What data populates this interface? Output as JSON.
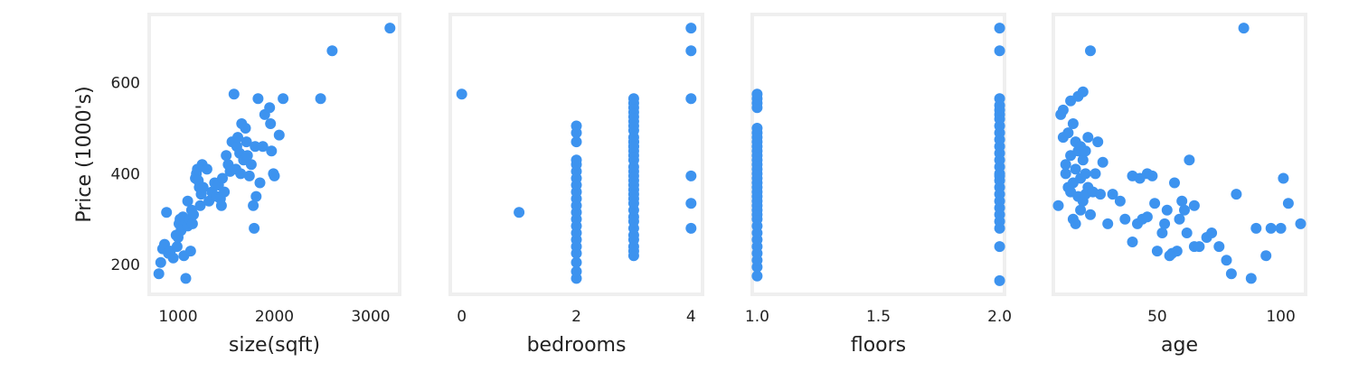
{
  "figure": {
    "marker_color": "#3d93ef",
    "frame_color": "#efefef"
  },
  "chart_data": [
    {
      "type": "scatter",
      "title": "",
      "xlabel": "size(sqft)",
      "ylabel": "Price (1000's)",
      "xlim": [
        700,
        3300
      ],
      "ylim": [
        135,
        750
      ],
      "xticks": [
        1000,
        2000,
        3000
      ],
      "xtick_labels": [
        "1000",
        "2000",
        "3000"
      ],
      "yticks": [
        200,
        400,
        600
      ],
      "ytick_labels": [
        "200",
        "400",
        "600"
      ],
      "grid": false,
      "x": [
        800,
        820,
        840,
        860,
        880,
        900,
        920,
        950,
        980,
        990,
        1000,
        1010,
        1020,
        1030,
        1050,
        1060,
        1080,
        1100,
        1100,
        1120,
        1130,
        1140,
        1150,
        1160,
        1180,
        1190,
        1200,
        1210,
        1220,
        1230,
        1240,
        1250,
        1260,
        1300,
        1320,
        1350,
        1380,
        1400,
        1420,
        1440,
        1450,
        1460,
        1480,
        1500,
        1520,
        1540,
        1560,
        1580,
        1600,
        1610,
        1620,
        1640,
        1650,
        1660,
        1680,
        1700,
        1710,
        1720,
        1740,
        1760,
        1780,
        1790,
        1800,
        1810,
        1830,
        1850,
        1880,
        1900,
        1950,
        1960,
        1970,
        1990,
        2000,
        2050,
        2090,
        2480,
        2600,
        3200
      ],
      "y": [
        180,
        205,
        235,
        245,
        315,
        225,
        230,
        215,
        265,
        240,
        260,
        290,
        300,
        275,
        305,
        220,
        170,
        285,
        340,
        300,
        230,
        320,
        290,
        310,
        390,
        400,
        410,
        385,
        370,
        330,
        355,
        420,
        370,
        410,
        340,
        360,
        380,
        350,
        375,
        345,
        330,
        390,
        360,
        440,
        420,
        405,
        470,
        575,
        410,
        460,
        480,
        445,
        400,
        510,
        430,
        500,
        470,
        440,
        395,
        420,
        330,
        280,
        460,
        350,
        565,
        380,
        460,
        530,
        545,
        510,
        450,
        400,
        395,
        485,
        565,
        565,
        670,
        720
      ]
    },
    {
      "type": "scatter",
      "title": "",
      "xlabel": "bedrooms",
      "ylabel": "",
      "xlim": [
        -0.2,
        4.2
      ],
      "ylim": [
        135,
        750
      ],
      "xticks": [
        0,
        2,
        4
      ],
      "xtick_labels": [
        "0",
        "2",
        "4"
      ],
      "grid": false,
      "x": [
        0,
        1,
        2,
        2,
        2,
        2,
        2,
        2,
        2,
        2,
        2,
        2,
        2,
        2,
        2,
        2,
        2,
        2,
        2,
        2,
        2,
        2,
        2,
        3,
        3,
        3,
        3,
        3,
        3,
        3,
        3,
        3,
        3,
        3,
        3,
        3,
        3,
        3,
        3,
        3,
        3,
        3,
        3,
        3,
        3,
        3,
        3,
        3,
        3,
        3,
        3,
        3,
        3,
        3,
        3,
        3,
        3,
        4,
        4,
        4,
        4,
        4,
        4
      ],
      "y": [
        575,
        315,
        170,
        185,
        205,
        225,
        240,
        255,
        270,
        285,
        300,
        315,
        330,
        345,
        360,
        375,
        390,
        405,
        420,
        430,
        470,
        490,
        505,
        220,
        230,
        240,
        255,
        265,
        280,
        295,
        305,
        320,
        335,
        345,
        355,
        365,
        375,
        385,
        395,
        405,
        415,
        430,
        440,
        450,
        460,
        470,
        480,
        495,
        505,
        515,
        525,
        535,
        545,
        555,
        565,
        470,
        460,
        720,
        670,
        565,
        395,
        335,
        280
      ]
    },
    {
      "type": "scatter",
      "title": "",
      "xlabel": "floors",
      "ylabel": "",
      "xlim": [
        0.98,
        2.02
      ],
      "ylim": [
        135,
        750
      ],
      "xticks": [
        1.0,
        1.5,
        2.0
      ],
      "xtick_labels": [
        "1.0",
        "1.5",
        "2.0"
      ],
      "grid": false,
      "x": [
        1,
        1,
        1,
        1,
        1,
        1,
        1,
        1,
        1,
        1,
        1,
        1,
        1,
        1,
        1,
        1,
        1,
        1,
        1,
        1,
        1,
        1,
        1,
        1,
        1,
        1,
        1,
        1,
        1,
        1,
        1,
        1,
        1,
        2,
        2,
        2,
        2,
        2,
        2,
        2,
        2,
        2,
        2,
        2,
        2,
        2,
        2,
        2,
        2,
        2,
        2,
        2,
        2,
        2,
        2,
        2,
        2,
        2,
        2
      ],
      "y": [
        175,
        195,
        210,
        225,
        240,
        255,
        270,
        285,
        300,
        310,
        320,
        330,
        340,
        350,
        360,
        370,
        380,
        390,
        400,
        410,
        420,
        430,
        440,
        450,
        460,
        470,
        480,
        490,
        500,
        545,
        555,
        565,
        575,
        165,
        240,
        280,
        295,
        310,
        325,
        340,
        355,
        370,
        385,
        400,
        415,
        430,
        445,
        460,
        475,
        490,
        505,
        520,
        530,
        540,
        550,
        565,
        670,
        720,
        395
      ]
    },
    {
      "type": "scatter",
      "title": "",
      "xlabel": "age",
      "ylabel": "",
      "xlim": [
        8,
        110
      ],
      "ylim": [
        135,
        750
      ],
      "xticks": [
        50,
        100
      ],
      "xtick_labels": [
        "50",
        "100"
      ],
      "grid": false,
      "x": [
        10,
        11,
        12,
        12,
        13,
        13,
        14,
        14,
        15,
        15,
        15,
        16,
        16,
        16,
        17,
        17,
        17,
        18,
        18,
        18,
        19,
        19,
        19,
        20,
        20,
        20,
        21,
        21,
        21,
        22,
        22,
        23,
        23,
        24,
        25,
        26,
        27,
        28,
        30,
        32,
        35,
        37,
        40,
        42,
        44,
        46,
        48,
        50,
        52,
        54,
        56,
        58,
        60,
        62,
        65,
        40,
        43,
        46,
        49,
        53,
        55,
        57,
        59,
        61,
        63,
        65,
        67,
        70,
        72,
        75,
        78,
        80,
        82,
        85,
        88,
        90,
        94,
        96,
        100,
        101,
        103,
        108
      ],
      "y": [
        330,
        530,
        480,
        540,
        400,
        420,
        370,
        490,
        360,
        440,
        560,
        300,
        380,
        510,
        290,
        410,
        470,
        350,
        450,
        570,
        320,
        390,
        460,
        340,
        430,
        580,
        355,
        400,
        450,
        370,
        480,
        670,
        310,
        360,
        400,
        470,
        355,
        425,
        290,
        355,
        340,
        300,
        250,
        290,
        300,
        400,
        395,
        230,
        270,
        320,
        225,
        230,
        340,
        270,
        240,
        395,
        390,
        305,
        335,
        290,
        220,
        380,
        300,
        320,
        430,
        330,
        240,
        260,
        270,
        240,
        210,
        180,
        355,
        720,
        170,
        280,
        220,
        280,
        280,
        390,
        335,
        290
      ]
    }
  ]
}
